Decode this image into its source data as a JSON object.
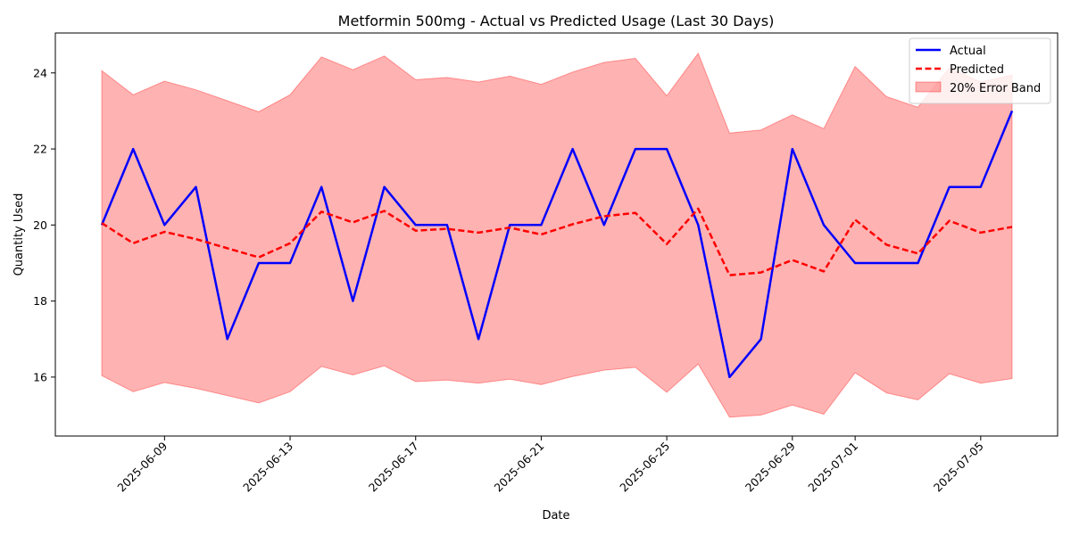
{
  "chart_data": {
    "type": "line",
    "title": "Metformin 500mg - Actual vs Predicted Usage (Last 30 Days)",
    "xlabel": "Date",
    "ylabel": "Quantity Used",
    "x": [
      "2025-06-07",
      "2025-06-08",
      "2025-06-09",
      "2025-06-10",
      "2025-06-11",
      "2025-06-12",
      "2025-06-13",
      "2025-06-14",
      "2025-06-15",
      "2025-06-16",
      "2025-06-17",
      "2025-06-18",
      "2025-06-19",
      "2025-06-20",
      "2025-06-21",
      "2025-06-22",
      "2025-06-23",
      "2025-06-24",
      "2025-06-25",
      "2025-06-26",
      "2025-06-27",
      "2025-06-28",
      "2025-06-29",
      "2025-06-30",
      "2025-07-01",
      "2025-07-02",
      "2025-07-03",
      "2025-07-04",
      "2025-07-05",
      "2025-07-06"
    ],
    "x_ticks": [
      "2025-06-09",
      "2025-06-13",
      "2025-06-17",
      "2025-06-21",
      "2025-06-25",
      "2025-06-29",
      "2025-07-01",
      "2025-07-05"
    ],
    "y_ticks": [
      16,
      18,
      20,
      22,
      24
    ],
    "ylim": [
      14.45,
      25.05
    ],
    "series": [
      {
        "name": "Actual",
        "color": "#0000ff",
        "style": "solid",
        "values": [
          20,
          22,
          20,
          21,
          17,
          19,
          19,
          21,
          18,
          21,
          20,
          20,
          17,
          20,
          20,
          22,
          20,
          22,
          22,
          20,
          16,
          17,
          22,
          20,
          19,
          19,
          19,
          21,
          21,
          23
        ]
      },
      {
        "name": "Predicted",
        "color": "#ff0000",
        "style": "dashed",
        "values": [
          20.05,
          19.52,
          19.82,
          19.63,
          19.39,
          19.15,
          19.52,
          20.35,
          20.07,
          20.37,
          19.85,
          19.9,
          19.8,
          19.93,
          19.75,
          20.02,
          20.23,
          20.32,
          19.5,
          20.43,
          18.68,
          18.75,
          19.08,
          18.78,
          20.14,
          19.48,
          19.25,
          20.11,
          19.8,
          19.95
        ]
      }
    ],
    "band": {
      "name": "20% Error Band",
      "color": "#ff0000",
      "opacity": 0.3,
      "relative_error": 0.2
    },
    "legend": "top-right",
    "grid": false
  }
}
